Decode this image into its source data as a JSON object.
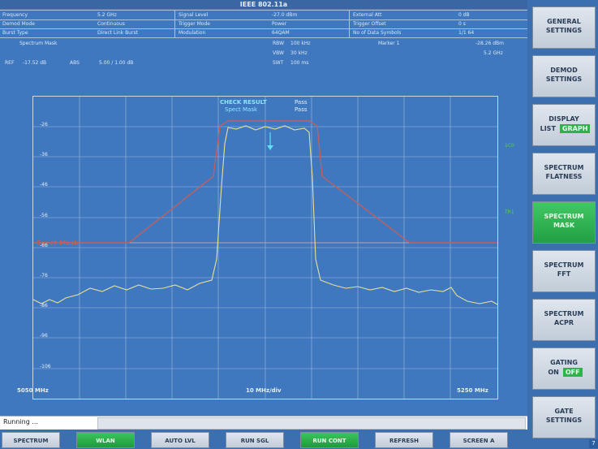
{
  "screen": {
    "title": "IEEE 802.11a",
    "params": [
      [
        {
          "label": "Frequency",
          "value": "5.2 GHz"
        },
        {
          "label": "Signal Level",
          "value": "-27.0 dBm"
        },
        {
          "label": "External Att",
          "value": "0 dB"
        }
      ],
      [
        {
          "label": "Demod Mode",
          "value": "Continuous"
        },
        {
          "label": "Trigger Mode",
          "value": "Power"
        },
        {
          "label": "Trigger Offset",
          "value": "0 s"
        }
      ],
      [
        {
          "label": "Burst Type",
          "value": "Direct Link Burst"
        },
        {
          "label": "Modulation",
          "value": "64QAM"
        },
        {
          "label": "No of Data Symbols",
          "value": "1/1 64"
        }
      ]
    ],
    "info": {
      "mode": "Spectrum Mask",
      "ref_label": "REF",
      "ref_value": "-17.52 dB",
      "abs_label": "ABS",
      "abs_value": "5.00 / 1.00 dB",
      "rbw_label": "RBW",
      "rbw_value": "100 kHz",
      "vbw_label": "VBW",
      "vbw_value": "30 kHz",
      "swt_label": "SWT",
      "swt_value": "100 ms",
      "marker_label": "Marker 1",
      "marker_level": "-28.26 dBm",
      "marker_freq": "5.2 GHz"
    },
    "plot": {
      "check_result_label": "CHECK RESULT",
      "check_result_value": "Pass",
      "mask_label": "Spect Mask",
      "mask_value": "Pass",
      "mask_line_label": "Spect Mask",
      "x_start": "5050 MHz",
      "x_center": "10 MHz/div",
      "x_end": "5250 MHz",
      "right_label_1": "1C0",
      "right_label_2": "TR1",
      "y_ticks": [
        "-26",
        "-36",
        "-46",
        "-56",
        "-66",
        "-76",
        "-86",
        "-96",
        "-106"
      ]
    },
    "status": "Running ..."
  },
  "bottom_keys": [
    "SPECTRUM",
    "WLAN",
    "AUTO LVL",
    "RUN SGL",
    "RUN CONT",
    "REFRESH",
    "SCREEN A"
  ],
  "bottom_active": [
    "WLAN",
    "RUN CONT"
  ],
  "side_keys": [
    {
      "l1": "GENERAL",
      "l2": "SETTINGS"
    },
    {
      "l1": "DEMOD",
      "l2": "SETTINGS"
    },
    {
      "l1": "DISPLAY",
      "t1": "LIST",
      "t2": "GRAPH"
    },
    {
      "l1": "SPECTRUM",
      "l2": "FLATNESS"
    },
    {
      "l1": "SPECTRUM",
      "l2": "MASK"
    },
    {
      "l1": "SPECTRUM",
      "l2": "FFT"
    },
    {
      "l1": "SPECTRUM",
      "l2": "ACPR"
    },
    {
      "l1": "GATING",
      "t1": "ON",
      "t2": "OFF"
    },
    {
      "l1": "GATE",
      "l2": "SETTINGS"
    }
  ],
  "corner": "7",
  "colors": {
    "bg": "#3f78bf",
    "trace": "#e6e09a",
    "mask": "#c0605e",
    "grid": "#c9d7ea",
    "active": "#2fb24c"
  }
}
